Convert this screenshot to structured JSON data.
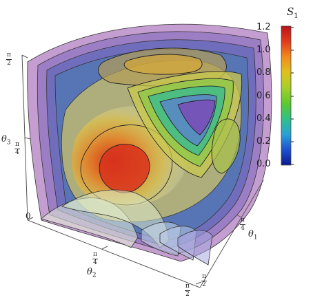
{
  "chart_data": {
    "type": "3d-contour-surface",
    "plotted_quantity": {
      "symbol": "S",
      "subscript": "1"
    },
    "axes": {
      "x": {
        "symbol": "θ",
        "subscript": "1",
        "range": [
          0,
          1.5708
        ],
        "ticks": [
          {
            "num": "π",
            "den": "4"
          },
          {
            "num": "π",
            "den": "2"
          }
        ]
      },
      "y": {
        "symbol": "θ",
        "subscript": "2",
        "range": [
          0,
          1.5708
        ],
        "ticks": [
          {
            "num": "π",
            "den": "4"
          },
          {
            "num": "π",
            "den": "2"
          }
        ]
      },
      "z": {
        "symbol": "θ",
        "subscript": "3",
        "range": [
          0,
          1.5708
        ],
        "ticks": [
          {
            "plain": "0"
          },
          {
            "num": "π",
            "den": "4"
          },
          {
            "num": "π",
            "den": "2"
          }
        ]
      }
    },
    "colorbar": {
      "range": [
        0.0,
        1.2
      ],
      "tick_labels": [
        "1.2",
        "1.0",
        "0.8",
        "0.6",
        "0.4",
        "0.2",
        "0.0"
      ],
      "colormap": [
        "#0a1a8c",
        "#1f4fd0",
        "#2aa0d8",
        "#2fc08a",
        "#5cc830",
        "#a8cf2a",
        "#e0c020",
        "#f08a1c",
        "#e23a1c",
        "#b8141c"
      ]
    },
    "contour_levels": [
      0.2,
      0.4,
      0.6,
      0.8,
      1.0
    ],
    "max_region": {
      "value": 1.2,
      "location": "mid θ2, mid θ3, low θ1"
    },
    "min_region": {
      "value": 0.2,
      "location": "high θ1, high θ2, high θ3"
    },
    "grid": false,
    "legend": "colorbar-right"
  }
}
